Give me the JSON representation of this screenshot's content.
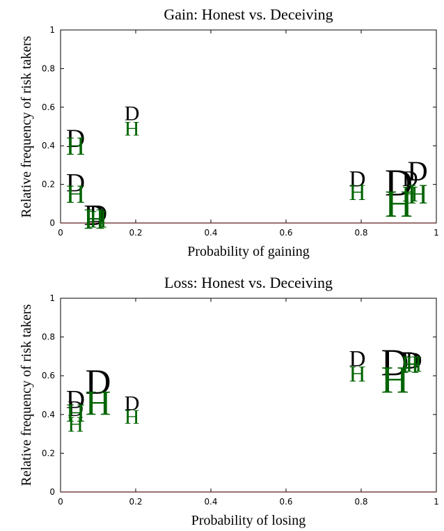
{
  "chart_data": [
    {
      "type": "scatter",
      "title": "Gain: Honest vs. Deceiving",
      "xlabel": "Probability of gaining",
      "ylabel": "Relative frequency of risk takers",
      "xlim": [
        0,
        1
      ],
      "ylim": [
        0,
        1
      ],
      "xticks": [
        "0",
        "0.2",
        "0.4",
        "0.6",
        "0.8",
        "1"
      ],
      "yticks": [
        "0",
        "0.2",
        "0.4",
        "0.6",
        "0.8",
        "1"
      ],
      "grid": false,
      "colors": {
        "D": "#000000",
        "H": "#006400"
      },
      "series": [
        {
          "marker_label": "D",
          "points": [
            {
              "x": 0.04,
              "y": 0.44,
              "scale": 1.25
            },
            {
              "x": 0.04,
              "y": 0.21,
              "scale": 1.25
            },
            {
              "x": 0.09,
              "y": 0.04,
              "scale": 1.4
            },
            {
              "x": 0.1,
              "y": 0.05,
              "scale": 1.2
            },
            {
              "x": 0.19,
              "y": 0.57,
              "scale": 1.0
            },
            {
              "x": 0.79,
              "y": 0.23,
              "scale": 1.1
            },
            {
              "x": 0.9,
              "y": 0.21,
              "scale": 1.85
            },
            {
              "x": 0.93,
              "y": 0.23,
              "scale": 1.05
            },
            {
              "x": 0.95,
              "y": 0.27,
              "scale": 1.35
            }
          ]
        },
        {
          "marker_label": "H",
          "points": [
            {
              "x": 0.04,
              "y": 0.4,
              "scale": 1.25
            },
            {
              "x": 0.04,
              "y": 0.15,
              "scale": 1.25
            },
            {
              "x": 0.09,
              "y": 0.02,
              "scale": 1.4
            },
            {
              "x": 0.1,
              "y": 0.02,
              "scale": 1.2
            },
            {
              "x": 0.19,
              "y": 0.49,
              "scale": 1.0
            },
            {
              "x": 0.79,
              "y": 0.16,
              "scale": 1.1
            },
            {
              "x": 0.9,
              "y": 0.1,
              "scale": 1.85
            },
            {
              "x": 0.93,
              "y": 0.15,
              "scale": 1.05
            },
            {
              "x": 0.95,
              "y": 0.15,
              "scale": 1.35
            }
          ]
        }
      ]
    },
    {
      "type": "scatter",
      "title": "Loss: Honest vs. Deceiving",
      "xlabel": "Probability of losing",
      "ylabel": "Relative frequency of risk takers",
      "xlim": [
        0,
        1
      ],
      "ylim": [
        0,
        1
      ],
      "xticks": [
        "0",
        "0.2",
        "0.4",
        "0.6",
        "0.8",
        "1"
      ],
      "yticks": [
        "0",
        "0.2",
        "0.4",
        "0.6",
        "0.8",
        "1"
      ],
      "grid": false,
      "colors": {
        "D": "#000000",
        "H": "#006400"
      },
      "series": [
        {
          "marker_label": "D",
          "points": [
            {
              "x": 0.04,
              "y": 0.48,
              "scale": 1.25
            },
            {
              "x": 0.04,
              "y": 0.43,
              "scale": 1.05
            },
            {
              "x": 0.1,
              "y": 0.57,
              "scale": 1.7
            },
            {
              "x": 0.19,
              "y": 0.46,
              "scale": 1.0
            },
            {
              "x": 0.79,
              "y": 0.69,
              "scale": 1.1
            },
            {
              "x": 0.89,
              "y": 0.67,
              "scale": 1.85
            },
            {
              "x": 0.93,
              "y": 0.68,
              "scale": 1.2
            },
            {
              "x": 0.94,
              "y": 0.68,
              "scale": 1.1
            }
          ]
        },
        {
          "marker_label": "H",
          "points": [
            {
              "x": 0.04,
              "y": 0.41,
              "scale": 1.25
            },
            {
              "x": 0.04,
              "y": 0.35,
              "scale": 1.05
            },
            {
              "x": 0.1,
              "y": 0.46,
              "scale": 1.7
            },
            {
              "x": 0.19,
              "y": 0.39,
              "scale": 1.0
            },
            {
              "x": 0.79,
              "y": 0.61,
              "scale": 1.1
            },
            {
              "x": 0.89,
              "y": 0.58,
              "scale": 1.85
            },
            {
              "x": 0.93,
              "y": 0.66,
              "scale": 1.2
            },
            {
              "x": 0.94,
              "y": 0.66,
              "scale": 1.1
            }
          ]
        }
      ]
    }
  ]
}
